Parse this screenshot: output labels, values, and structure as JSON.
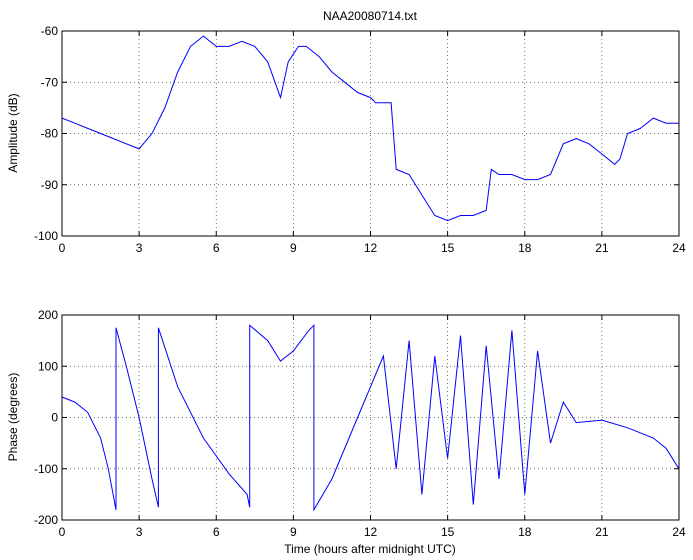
{
  "chart_data": [
    {
      "type": "line",
      "title": "NAA20080714.txt",
      "xlabel": "",
      "ylabel": "Amplitude (dB)",
      "xlim": [
        0,
        24
      ],
      "ylim": [
        -100,
        -60
      ],
      "xticks": [
        0,
        3,
        6,
        9,
        12,
        15,
        18,
        21,
        24
      ],
      "yticks": [
        -100,
        -90,
        -80,
        -70,
        -60
      ],
      "grid": true,
      "color": "#0000ff",
      "series": [
        {
          "x": [
            0,
            0.5,
            1.0,
            1.5,
            2.0,
            2.5,
            3.0,
            3.5,
            4.0,
            4.5,
            5.0,
            5.5,
            6.0,
            6.5,
            7.0,
            7.5,
            8.0,
            8.5,
            8.8,
            9.2,
            9.5,
            10.0,
            10.5,
            11.0,
            11.5,
            12.0,
            12.2,
            12.5,
            12.8,
            13.0,
            13.5,
            14.0,
            14.5,
            15.0,
            15.5,
            16.0,
            16.5,
            16.7,
            17.0,
            17.5,
            18.0,
            18.5,
            19.0,
            19.5,
            20.0,
            20.5,
            21.0,
            21.5,
            21.7,
            22.0,
            22.5,
            23.0,
            23.5,
            24.0
          ],
          "values": [
            -77,
            -78,
            -79,
            -80,
            -81,
            -82,
            -83,
            -80,
            -75,
            -68,
            -63,
            -61,
            -63,
            -63,
            -62,
            -63,
            -66,
            -73,
            -66,
            -63,
            -63,
            -65,
            -68,
            -70,
            -72,
            -73,
            -74,
            -74,
            -74,
            -87,
            -88,
            -92,
            -96,
            -97,
            -96,
            -96,
            -95,
            -87,
            -88,
            -88,
            -89,
            -89,
            -88,
            -82,
            -81,
            -82,
            -84,
            -86,
            -85,
            -80,
            -79,
            -77,
            -78,
            -78
          ]
        }
      ]
    },
    {
      "type": "line",
      "title": "",
      "xlabel": "Time (hours after midnight UTC)",
      "ylabel": "Phase (degrees)",
      "xlim": [
        0,
        24
      ],
      "ylim": [
        -200,
        200
      ],
      "xticks": [
        0,
        3,
        6,
        9,
        12,
        15,
        18,
        21,
        24
      ],
      "yticks": [
        -200,
        -100,
        0,
        100,
        200
      ],
      "grid": true,
      "color": "#0000ff",
      "series": [
        {
          "x": [
            0,
            0.5,
            1.0,
            1.5,
            1.8,
            2.1,
            2.1,
            2.5,
            3.0,
            3.5,
            3.75,
            3.75,
            4.5,
            5.5,
            6.5,
            7.2,
            7.3,
            7.3,
            8.0,
            8.5,
            9.0,
            9.6,
            9.8,
            9.8,
            10.5,
            11.5,
            12.5,
            13.0,
            13.5,
            14.0,
            14.5,
            15.0,
            15.5,
            16.0,
            16.5,
            17.0,
            17.5,
            18.0,
            18.5,
            19.0,
            19.5,
            20.0,
            21.0,
            22.0,
            23.0,
            23.5,
            24.0
          ],
          "values": [
            40,
            30,
            10,
            -40,
            -100,
            -180,
            175,
            100,
            0,
            -120,
            -175,
            175,
            60,
            -40,
            -110,
            -150,
            -175,
            180,
            150,
            110,
            130,
            170,
            180,
            -180,
            -120,
            0,
            120,
            -100,
            150,
            -150,
            120,
            -80,
            160,
            -170,
            140,
            -120,
            170,
            -150,
            130,
            -50,
            30,
            -10,
            -5,
            -20,
            -40,
            -60,
            -100
          ]
        }
      ]
    }
  ]
}
